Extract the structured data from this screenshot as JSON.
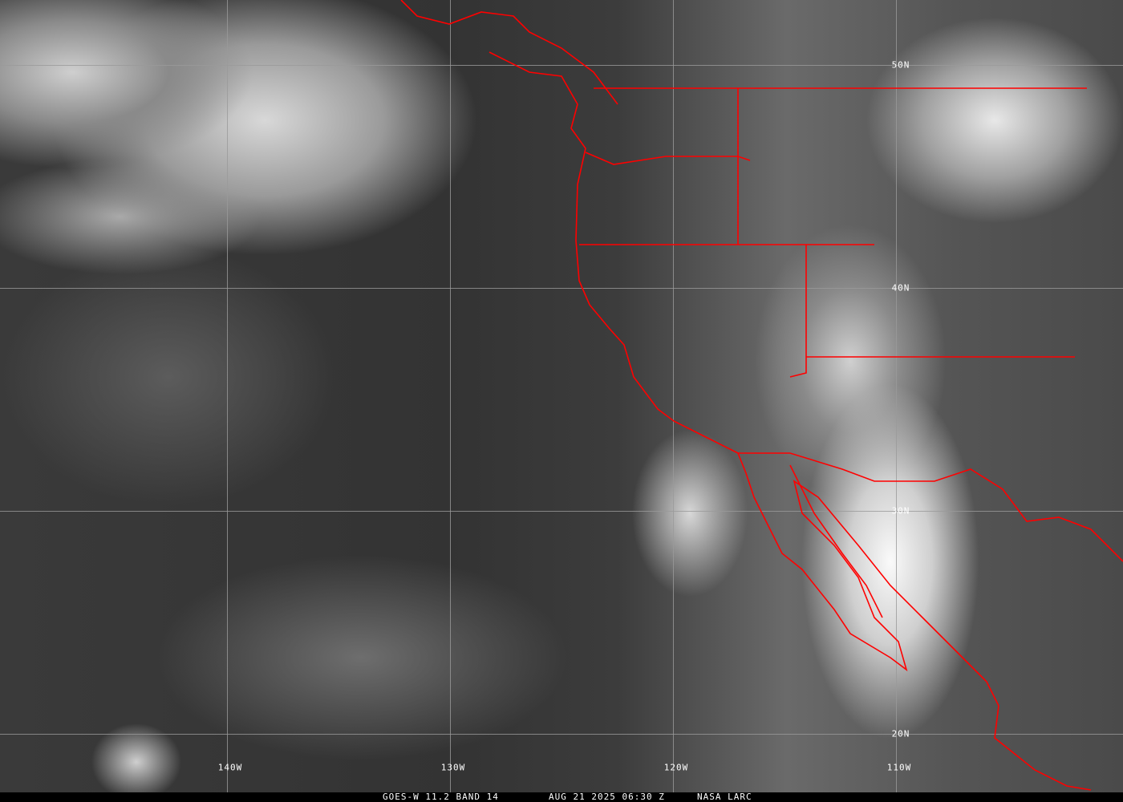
{
  "map": {
    "latitude_labels": [
      "50N",
      "40N",
      "30N",
      "20N"
    ],
    "longitude_labels": [
      "140W",
      "130W",
      "120W",
      "110W"
    ],
    "border_color": "#ff0000",
    "grid_color": "#9a9a9a"
  },
  "caption": {
    "product": "GOES-W 11.2 BAND 14",
    "datetime": "AUG 21 2025 06:30 Z",
    "credit": "NASA LARC"
  }
}
